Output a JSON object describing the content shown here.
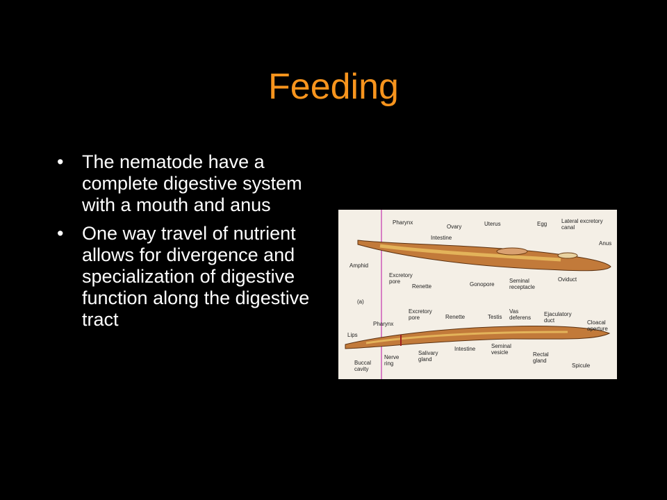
{
  "title": "Feeding",
  "bullets": [
    "The nematode have a complete digestive system with a mouth and anus",
    "One way travel of nutrient allows for divergence and specialization of digestive function along the digestive tract"
  ],
  "figure": {
    "labels": [
      "Pharynx",
      "Ovary",
      "Uterus",
      "Egg",
      "Lateral excretory canal",
      "Intestine",
      "Anus",
      "Amphid",
      "Excretory pore",
      "Renette",
      "Gonopore",
      "Seminal receptacle",
      "Oviduct",
      "(a)",
      "Excretory pore",
      "Renette",
      "Testis",
      "Vas deferens",
      "Ejaculatory duct",
      "Pharynx",
      "Cloacal aperture",
      "Lips",
      "Intestine",
      "Seminal vesicle",
      "Buccal cavity",
      "Nerve ring",
      "Salivary gland",
      "Rectal gland",
      "Spicule"
    ]
  }
}
